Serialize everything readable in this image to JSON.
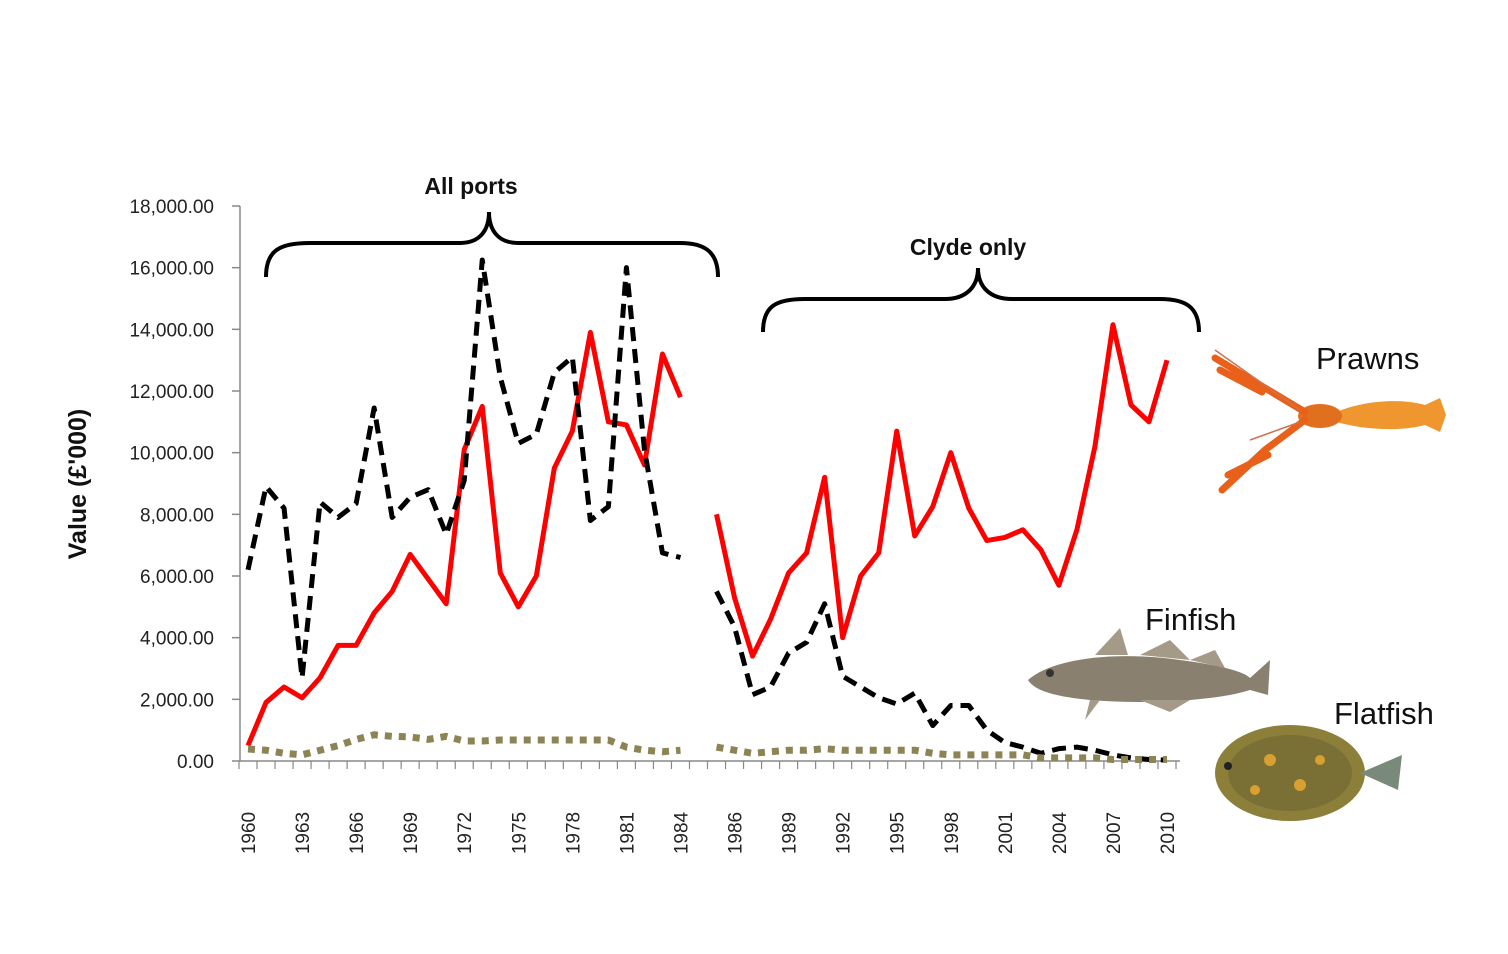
{
  "chart_data": {
    "type": "line",
    "title": "",
    "xlabel": "",
    "ylabel": "Value (£'000)",
    "ylim": [
      0,
      18000
    ],
    "yticks": [
      "0.00",
      "2,000.00",
      "4,000.00",
      "6,000.00",
      "8,000.00",
      "10,000.00",
      "12,000.00",
      "14,000.00",
      "16,000.00",
      "18,000.00"
    ],
    "categories": [
      "1960",
      "1961",
      "1962",
      "1963",
      "1964",
      "1965",
      "1966",
      "1967",
      "1968",
      "1969",
      "1970",
      "1971",
      "1972",
      "1973",
      "1974",
      "1975",
      "1976",
      "1977",
      "1978",
      "1979",
      "1980",
      "1981",
      "1982",
      "1983",
      "1984",
      "",
      "1985",
      "1986",
      "1987",
      "1988",
      "1989",
      "1990",
      "1991",
      "1992",
      "1993",
      "1994",
      "1995",
      "1996",
      "1997",
      "1998",
      "1999",
      "2000",
      "2001",
      "2002",
      "2003",
      "2004",
      "2005",
      "2006",
      "2007",
      "2008",
      "2009",
      "2010"
    ],
    "xtick_labels": [
      "1960",
      "1963",
      "1966",
      "1969",
      "1972",
      "1975",
      "1978",
      "1981",
      "1984",
      "1986",
      "1989",
      "1992",
      "1995",
      "1998",
      "2001",
      "2004",
      "2007",
      "2010"
    ],
    "grid": false,
    "series": [
      {
        "name": "Prawns",
        "color": "#ff0000",
        "style": "solid",
        "values": [
          500,
          1900,
          2400,
          2050,
          2700,
          3750,
          3750,
          4800,
          5500,
          6700,
          5900,
          5100,
          10100,
          11500,
          6100,
          5000,
          6000,
          9500,
          10700,
          13900,
          11000,
          10900,
          9600,
          13200,
          11800,
          null,
          8000,
          5300,
          3400,
          4600,
          6100,
          6750,
          9200,
          4000,
          6000,
          6750,
          10700,
          7300,
          8250,
          10000,
          8200,
          7150,
          7250,
          7500,
          6850,
          5700,
          7500,
          10200,
          14150,
          11550,
          11000,
          13000
        ]
      },
      {
        "name": "Finfish",
        "color": "#000000",
        "style": "dashed",
        "values": [
          6200,
          8900,
          8200,
          2700,
          8400,
          7900,
          8350,
          11450,
          7900,
          8550,
          8800,
          7350,
          9100,
          16250,
          12450,
          10300,
          10600,
          12600,
          13100,
          7800,
          8250,
          16000,
          10100,
          6750,
          6600,
          null,
          5500,
          4350,
          2150,
          2400,
          3500,
          3850,
          5100,
          2750,
          2400,
          2050,
          1850,
          2200,
          1150,
          1800,
          1800,
          1000,
          600,
          450,
          250,
          400,
          450,
          350,
          200,
          100,
          50,
          30
        ]
      },
      {
        "name": "Flatfish",
        "color": "#8c8455",
        "style": "dotted",
        "values": [
          390,
          350,
          250,
          200,
          350,
          500,
          700,
          850,
          800,
          780,
          700,
          800,
          650,
          650,
          680,
          680,
          680,
          680,
          680,
          680,
          680,
          450,
          350,
          300,
          350,
          null,
          450,
          350,
          250,
          300,
          350,
          350,
          400,
          350,
          350,
          350,
          350,
          350,
          250,
          200,
          200,
          200,
          200,
          200,
          100,
          100,
          100,
          100,
          50,
          50,
          50,
          50
        ]
      }
    ],
    "annotations": [
      {
        "text": "All ports",
        "span": [
          "1960",
          "1984"
        ]
      },
      {
        "text": "Clyde only",
        "span": [
          "1986",
          "2010"
        ]
      }
    ],
    "legend": {
      "placement": "right",
      "entries": [
        "Prawns",
        "Finfish",
        "Flatfish"
      ]
    }
  }
}
